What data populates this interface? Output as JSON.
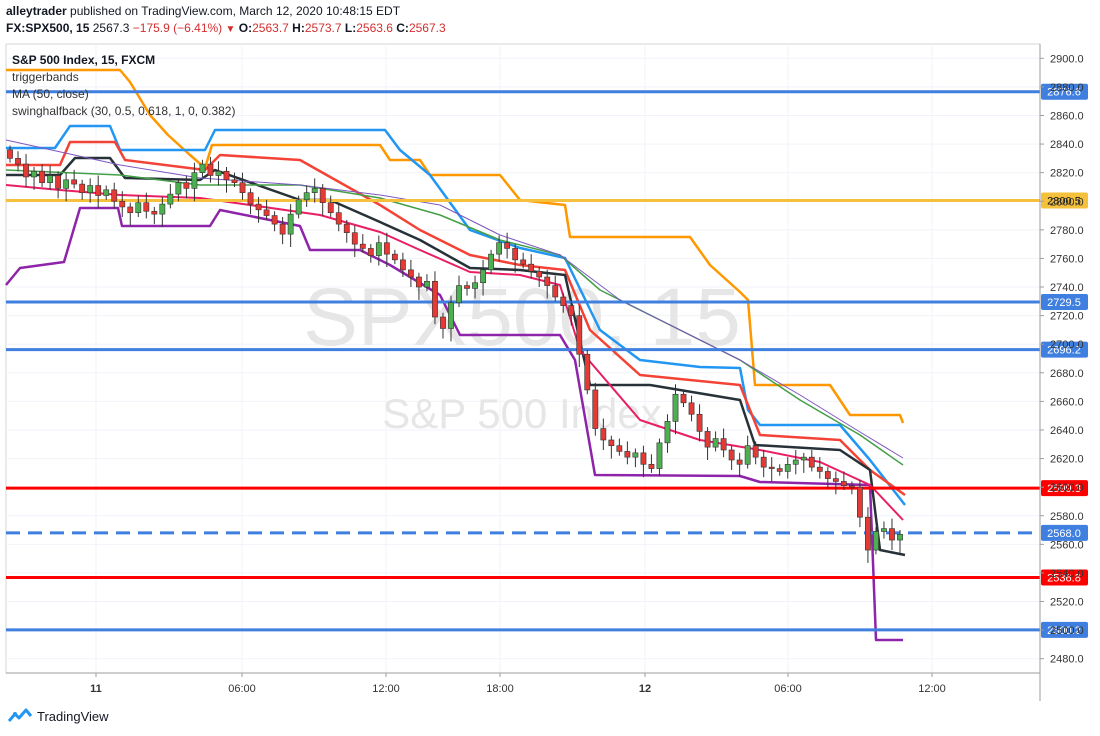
{
  "header": {
    "author": "alleytrader",
    "published": "published on TradingView.com, March 12, 2020 10:48:15 EDT",
    "symbol": "FX:SPX500, 15",
    "last": "2567.3",
    "change": "−175.9 (−6.41%)",
    "o_label": "O:",
    "o_value": "2563.7",
    "h_label": "H:",
    "h_value": "2573.7",
    "l_label": "L:",
    "l_value": "2563.6",
    "c_label": "C:",
    "c_value": "2567.3"
  },
  "legend": {
    "title": "S&P 500 Index, 15, FXCM",
    "items": [
      "triggerbands",
      "MA (50, close)",
      "swinghalfback (30, 0.5, 0.618, 1, 0, 0.382)"
    ]
  },
  "watermark": {
    "big": "SPX500, 15",
    "small": "S&P 500 Index"
  },
  "footer": {
    "brand": "TradingView"
  },
  "colors": {
    "up": "#4caf50",
    "down": "#e53935",
    "blue_line": "#3f7fdf",
    "red_line": "#ff0000",
    "gold_line": "#f5c03b",
    "orange": "#ff9800"
  },
  "chart_data": {
    "type": "candlestick",
    "title": "S&P 500 Index, 15, FXCM",
    "ylim": [
      2470,
      2910
    ],
    "y_ticks": [
      2900,
      2880,
      2860,
      2840,
      2820,
      2800,
      2780,
      2760,
      2740,
      2720,
      2700,
      2680,
      2660,
      2640,
      2620,
      2600,
      2580,
      2560,
      2540,
      2520,
      2500,
      2480
    ],
    "y_tick_labels": [
      "2900.0",
      "2880.0",
      "2860.0",
      "2840.0",
      "2820.0",
      "2800.0",
      "2780.0",
      "2760.0",
      "2740.0",
      "2720.0",
      "2700.0",
      "2680.0",
      "2660.0",
      "2640.0",
      "2620.0",
      "2600.0",
      "2580.0",
      "2560.0",
      "2540.0",
      "2520.0",
      "2500.0",
      "2480.0"
    ],
    "x_tick_labels": [
      "11",
      "06:00",
      "12:00",
      "18:00",
      "12",
      "06:00",
      "12:00"
    ],
    "x_tick_bold": [
      true,
      false,
      false,
      false,
      true,
      false,
      false
    ],
    "horizontal_levels": [
      {
        "value": 2876.6,
        "label": "2876.6",
        "color": "#3f7fdf",
        "style": "solid"
      },
      {
        "value": 2800.5,
        "label": "2800.5",
        "color": "#f5c03b",
        "style": "solid"
      },
      {
        "value": 2729.5,
        "label": "2729.5",
        "color": "#3f7fdf",
        "style": "solid"
      },
      {
        "value": 2696.2,
        "label": "2696.2",
        "color": "#3f7fdf",
        "style": "solid"
      },
      {
        "value": 2599.3,
        "label": "2599.3",
        "color": "#ff0000",
        "style": "solid"
      },
      {
        "value": 2568.0,
        "label": "2568.0",
        "color": "#3f7fdf",
        "style": "dashed"
      },
      {
        "value": 2536.8,
        "label": "2536.8",
        "color": "#ff0000",
        "style": "solid"
      },
      {
        "value": 2500.2,
        "label": "2500.2",
        "color": "#3f7fdf",
        "style": "solid"
      }
    ],
    "candle_closes": [
      2830,
      2826,
      2817,
      2821,
      2813,
      2818,
      2809,
      2815,
      2812,
      2806,
      2811,
      2804,
      2808,
      2800,
      2796,
      2792,
      2799,
      2793,
      2791,
      2798,
      2805,
      2813,
      2809,
      2820,
      2826,
      2818,
      2821,
      2815,
      2813,
      2806,
      2798,
      2794,
      2790,
      2784,
      2777,
      2791,
      2801,
      2806,
      2809,
      2799,
      2792,
      2784,
      2778,
      2770,
      2767,
      2762,
      2771,
      2763,
      2759,
      2752,
      2747,
      2740,
      2744,
      2719,
      2711,
      2729,
      2741,
      2739,
      2743,
      2752,
      2763,
      2771,
      2767,
      2759,
      2756,
      2751,
      2747,
      2741,
      2733,
      2727,
      2720,
      2693,
      2668,
      2641,
      2633,
      2629,
      2625,
      2621,
      2624,
      2616,
      2613,
      2631,
      2646,
      2665,
      2659,
      2651,
      2639,
      2628,
      2634,
      2626,
      2619,
      2616,
      2629,
      2621,
      2614,
      2613,
      2611,
      2616,
      2619,
      2621,
      2614,
      2611,
      2606,
      2604,
      2601,
      2600,
      2579,
      2556,
      2569,
      2571,
      2563,
      2567
    ]
  }
}
